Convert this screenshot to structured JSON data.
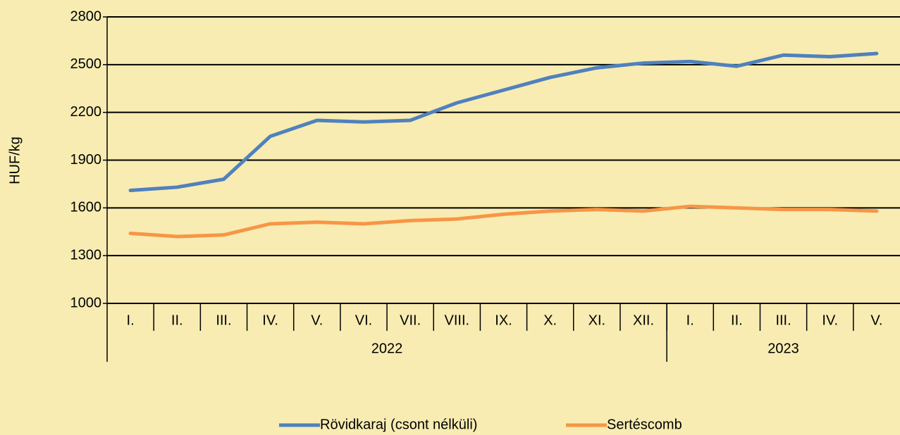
{
  "chart_data": {
    "type": "line",
    "y_label": "HUF/kg",
    "categories": [
      "I.",
      "II.",
      "III.",
      "IV.",
      "V.",
      "VI.",
      "VII.",
      "VIII.",
      "IX.",
      "X.",
      "XI.",
      "XII.",
      "I.",
      "II.",
      "III.",
      "IV.",
      "V."
    ],
    "groups": [
      {
        "label": "2022",
        "size": 12
      },
      {
        "label": "2023",
        "size": 5
      }
    ],
    "series": [
      {
        "name": "Rövidkaraj (csont nélküli)",
        "color": "#4f81bd",
        "values": [
          1710,
          1730,
          1780,
          2050,
          2150,
          2140,
          2150,
          2260,
          2340,
          2420,
          2480,
          2510,
          2520,
          2490,
          2560,
          2550,
          2570
        ]
      },
      {
        "name": "Sertéscomb",
        "color": "#f79646",
        "values": [
          1440,
          1420,
          1430,
          1500,
          1510,
          1500,
          1520,
          1530,
          1560,
          1580,
          1590,
          1580,
          1610,
          1600,
          1590,
          1590,
          1580
        ]
      }
    ],
    "ylim": [
      1000,
      2800
    ],
    "yticks": [
      1000,
      1300,
      1600,
      1900,
      2200,
      2500,
      2800
    ],
    "grid": true,
    "legend": "bottom"
  }
}
